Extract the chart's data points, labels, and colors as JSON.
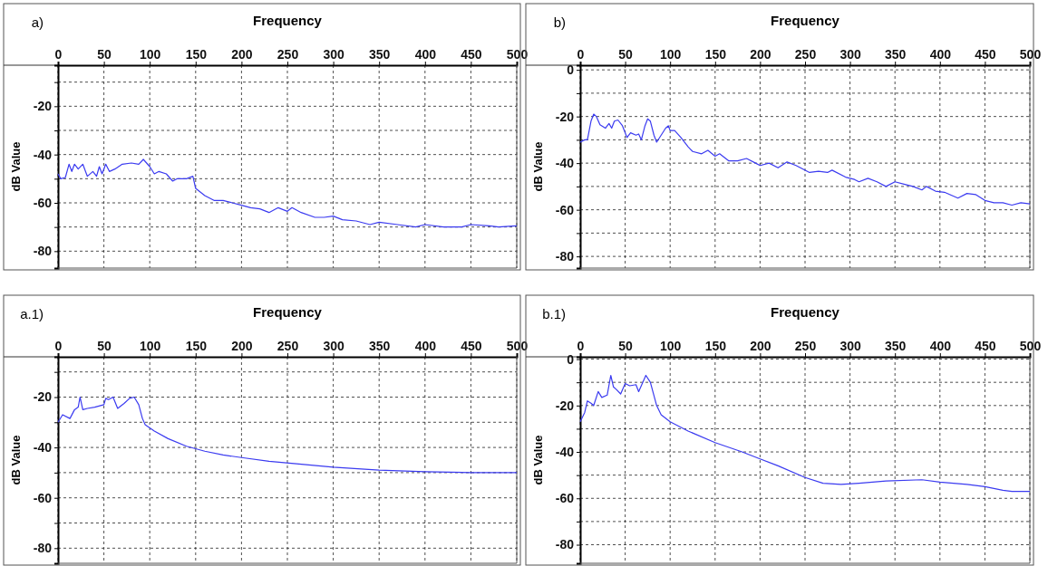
{
  "chart_data": [
    {
      "type": "line",
      "title": "a)",
      "xlabel": "Frequency",
      "ylabel": "dB Value",
      "xlim": [
        0,
        500
      ],
      "xticks": [
        0,
        50,
        100,
        150,
        200,
        250,
        300,
        350,
        400,
        450,
        500
      ],
      "ylim": [
        -87,
        -3
      ],
      "yticks": [
        {
          "value": -10,
          "label": null
        },
        -20,
        {
          "value": -30,
          "label": null
        },
        -40,
        {
          "value": -50,
          "label": null
        },
        -60,
        {
          "value": -70,
          "label": null
        },
        -80
      ],
      "grid": true,
      "line_style": "solid",
      "series": [
        {
          "color": "#3b3bf0",
          "x": [
            0,
            3,
            8,
            12,
            15,
            18,
            22,
            27,
            32,
            38,
            42,
            45,
            48,
            52,
            56,
            62,
            70,
            80,
            88,
            93,
            100,
            105,
            110,
            118,
            125,
            130,
            140,
            147,
            150,
            160,
            170,
            180,
            190,
            200,
            210,
            220,
            230,
            240,
            250,
            255,
            265,
            280,
            290,
            300,
            310,
            325,
            340,
            350,
            370,
            390,
            400,
            420,
            440,
            450,
            470,
            480,
            500
          ],
          "values": [
            -48,
            -50,
            -49.5,
            -44,
            -47,
            -44,
            -46,
            -44,
            -49,
            -47,
            -49,
            -45,
            -48,
            -44,
            -47,
            -46,
            -44,
            -43.5,
            -44,
            -42,
            -45,
            -48,
            -47,
            -48,
            -51,
            -50,
            -50,
            -49,
            -54,
            -57,
            -59,
            -59,
            -60,
            -61,
            -62,
            -62.5,
            -64,
            -62,
            -63.5,
            -62,
            -64,
            -66,
            -66,
            -65.5,
            -67,
            -67.5,
            -69,
            -68,
            -69,
            -70,
            -69,
            -70,
            -70,
            -69,
            -69.5,
            -70,
            -69.5
          ]
        }
      ]
    },
    {
      "type": "line",
      "title": "b)",
      "xlabel": "Frequency",
      "ylabel": "dB Value",
      "xlim": [
        0,
        500
      ],
      "xticks": [
        0,
        50,
        100,
        150,
        200,
        250,
        300,
        350,
        400,
        450,
        500
      ],
      "ylim": [
        -85,
        2
      ],
      "yticks": [
        0,
        {
          "value": -10,
          "label": null
        },
        -20,
        {
          "value": -30,
          "label": null
        },
        -40,
        {
          "value": -50,
          "label": null
        },
        -60,
        {
          "value": -70,
          "label": null
        },
        -80
      ],
      "grid": true,
      "line_style": "solid",
      "series": [
        {
          "color": "#3b3bf0",
          "x": [
            0,
            5,
            8,
            12,
            15,
            18,
            22,
            28,
            32,
            35,
            38,
            42,
            47,
            52,
            56,
            62,
            65,
            68,
            72,
            75,
            78,
            82,
            85,
            90,
            95,
            98,
            100,
            105,
            112,
            120,
            125,
            135,
            142,
            150,
            155,
            165,
            175,
            185,
            195,
            200,
            210,
            220,
            230,
            240,
            255,
            265,
            275,
            280,
            295,
            305,
            310,
            320,
            330,
            340,
            350,
            360,
            370,
            380,
            385,
            395,
            405,
            420,
            430,
            440,
            450,
            460,
            470,
            480,
            490,
            500
          ],
          "values": [
            -31,
            -30,
            -30,
            -22,
            -19,
            -20,
            -23.5,
            -25,
            -23,
            -25,
            -22,
            -21.5,
            -24,
            -29,
            -27,
            -28,
            -27.5,
            -30,
            -24,
            -21,
            -22,
            -28,
            -31,
            -28,
            -25,
            -24,
            -26,
            -26,
            -29,
            -33,
            -35,
            -36,
            -34.5,
            -37,
            -36,
            -39,
            -39,
            -38,
            -40,
            -41,
            -40,
            -42,
            -39.5,
            -41,
            -44,
            -43.5,
            -44,
            -43,
            -46,
            -47,
            -48,
            -46.5,
            -48,
            -50,
            -48,
            -49,
            -50,
            -51.5,
            -50,
            -52,
            -52.5,
            -55,
            -53,
            -53.5,
            -56,
            -57,
            -57,
            -58,
            -57,
            -57.5
          ]
        }
      ]
    },
    {
      "type": "line",
      "title": "a.1)",
      "xlabel": "Frequency",
      "ylabel": "dB Value",
      "xlim": [
        0,
        500
      ],
      "xticks": [
        0,
        50,
        100,
        150,
        200,
        250,
        300,
        350,
        400,
        450,
        500
      ],
      "ylim": [
        -86,
        -4
      ],
      "yticks": [
        {
          "value": -10,
          "label": null
        },
        -20,
        {
          "value": -30,
          "label": null
        },
        -40,
        {
          "value": -50,
          "label": null
        },
        -60,
        {
          "value": -70,
          "label": null
        },
        -80
      ],
      "grid": true,
      "line_style": "solid",
      "series": [
        {
          "color": "#3b3bf0",
          "x": [
            0,
            5,
            13,
            18,
            22,
            24,
            27,
            32,
            40,
            50,
            52,
            55,
            60,
            65,
            72,
            78,
            83,
            88,
            92,
            95,
            105,
            120,
            140,
            160,
            180,
            200,
            230,
            260,
            300,
            350,
            400,
            450,
            500
          ],
          "values": [
            -30,
            -27,
            -28.5,
            -25,
            -24,
            -20,
            -25,
            -24.5,
            -24,
            -23,
            -20.5,
            -21,
            -20,
            -24.5,
            -22.5,
            -20.5,
            -20,
            -23,
            -28.5,
            -31,
            -33.5,
            -36.5,
            -39.5,
            -41.5,
            -43,
            -44,
            -45.5,
            -46.5,
            -47.8,
            -49,
            -49.6,
            -50,
            -50
          ]
        }
      ]
    },
    {
      "type": "line",
      "title": "b.1)",
      "xlabel": "Frequency",
      "ylabel": "dB Value",
      "xlim": [
        0,
        500
      ],
      "xticks": [
        0,
        50,
        100,
        150,
        200,
        250,
        300,
        350,
        400,
        450,
        500
      ],
      "ylim": [
        -88,
        1
      ],
      "yticks": [
        0,
        {
          "value": -10,
          "label": null
        },
        -20,
        {
          "value": -30,
          "label": null
        },
        -40,
        {
          "value": -50,
          "label": null
        },
        -60,
        {
          "value": -70,
          "label": null
        },
        -80
      ],
      "grid": true,
      "line_style": "solid",
      "series": [
        {
          "color": "#3b3bf0",
          "x": [
            0,
            5,
            8,
            12,
            15,
            20,
            24,
            30,
            34,
            37,
            40,
            45,
            50,
            55,
            62,
            65,
            73,
            78,
            85,
            90,
            100,
            120,
            150,
            180,
            200,
            220,
            250,
            270,
            290,
            310,
            340,
            380,
            400,
            430,
            450,
            470,
            480,
            500
          ],
          "values": [
            -27,
            -23,
            -18,
            -19,
            -20,
            -14,
            -16.5,
            -15.5,
            -7,
            -12,
            -13,
            -15,
            -10.5,
            -11.5,
            -11,
            -14,
            -7,
            -10,
            -20,
            -24,
            -27,
            -31,
            -36,
            -40,
            -43,
            -46,
            -51,
            -53.5,
            -54,
            -53.5,
            -52.5,
            -52,
            -53,
            -54,
            -55,
            -56.5,
            -57,
            -57
          ]
        }
      ]
    }
  ]
}
